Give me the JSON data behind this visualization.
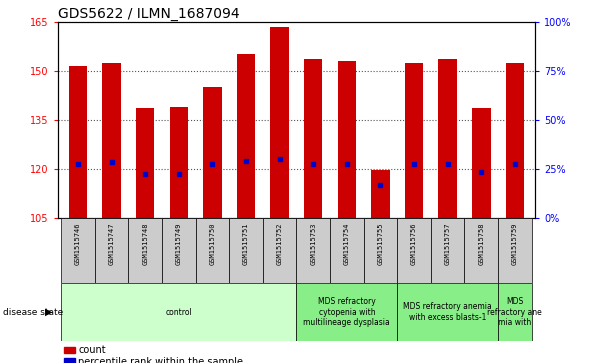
{
  "title": "GDS5622 / ILMN_1687094",
  "samples": [
    "GSM1515746",
    "GSM1515747",
    "GSM1515748",
    "GSM1515749",
    "GSM1515750",
    "GSM1515751",
    "GSM1515752",
    "GSM1515753",
    "GSM1515754",
    "GSM1515755",
    "GSM1515756",
    "GSM1515757",
    "GSM1515758",
    "GSM1515759"
  ],
  "bar_tops": [
    151.5,
    152.5,
    138.5,
    139.0,
    145.0,
    155.0,
    163.5,
    153.5,
    153.0,
    119.5,
    152.5,
    153.5,
    138.5,
    152.5
  ],
  "bar_base": 105,
  "blue_values": [
    121.5,
    122.0,
    118.5,
    118.5,
    121.5,
    122.5,
    123.0,
    121.5,
    121.5,
    115.0,
    121.5,
    121.5,
    119.0,
    121.5
  ],
  "ylim_left": [
    105,
    165
  ],
  "ylim_right": [
    0,
    100
  ],
  "yticks_left": [
    105,
    120,
    135,
    150,
    165
  ],
  "yticks_right": [
    0,
    25,
    50,
    75,
    100
  ],
  "grid_lines": [
    120,
    135,
    150
  ],
  "bar_color": "#cc0000",
  "blue_color": "#0000cc",
  "grid_color": "#555555",
  "bg_plot": "#ffffff",
  "bg_xtick": "#cccccc",
  "disease_groups": [
    {
      "label": "control",
      "start": 0,
      "end": 7,
      "color": "#ccffcc"
    },
    {
      "label": "MDS refractory\ncytopenia with\nmultilineage dysplasia",
      "start": 7,
      "end": 10,
      "color": "#88ee88"
    },
    {
      "label": "MDS refractory anemia\nwith excess blasts-1",
      "start": 10,
      "end": 13,
      "color": "#88ee88"
    },
    {
      "label": "MDS\nrefractory ane\nmia with",
      "start": 13,
      "end": 14,
      "color": "#88ee88"
    }
  ],
  "legend_items": [
    {
      "label": "count",
      "color": "#cc0000"
    },
    {
      "label": "percentile rank within the sample",
      "color": "#0000cc"
    }
  ],
  "title_fontsize": 10,
  "tick_fontsize": 7,
  "sample_fontsize": 5,
  "disease_fontsize": 5.5,
  "legend_fontsize": 7
}
